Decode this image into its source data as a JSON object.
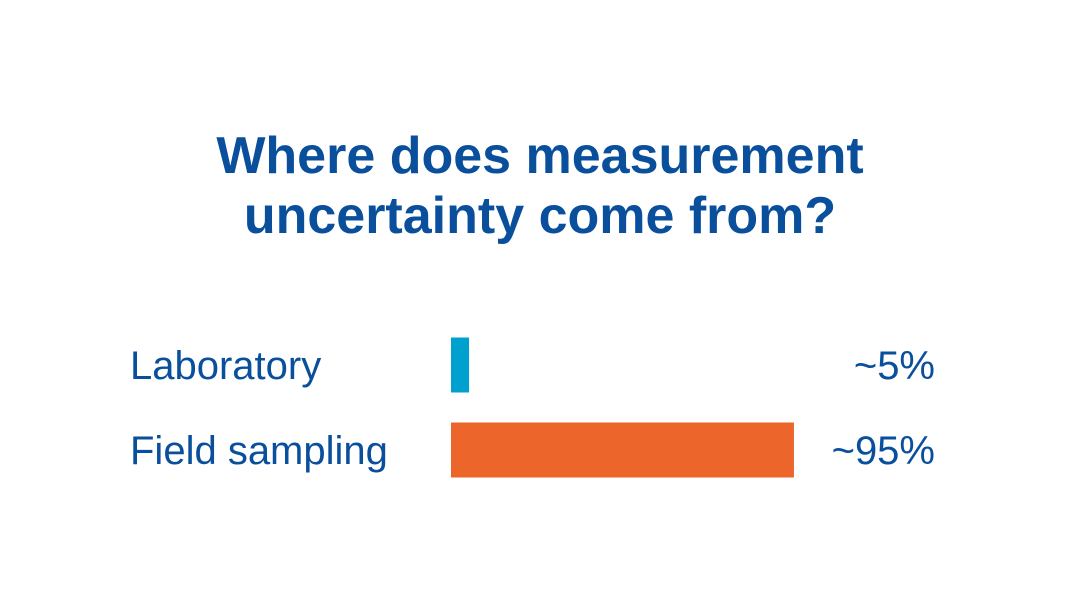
{
  "chart_data": {
    "type": "bar",
    "orientation": "horizontal",
    "title_lines": [
      "Where does measurement",
      "uncertainty come from?"
    ],
    "categories": [
      "Laboratory",
      "Field sampling"
    ],
    "values": [
      5,
      95
    ],
    "value_labels": [
      "~5%",
      "~95%"
    ],
    "colors": [
      "#00a0cf",
      "#ec652b"
    ],
    "xlim": [
      0,
      100
    ],
    "grid": false,
    "legend": "none"
  }
}
